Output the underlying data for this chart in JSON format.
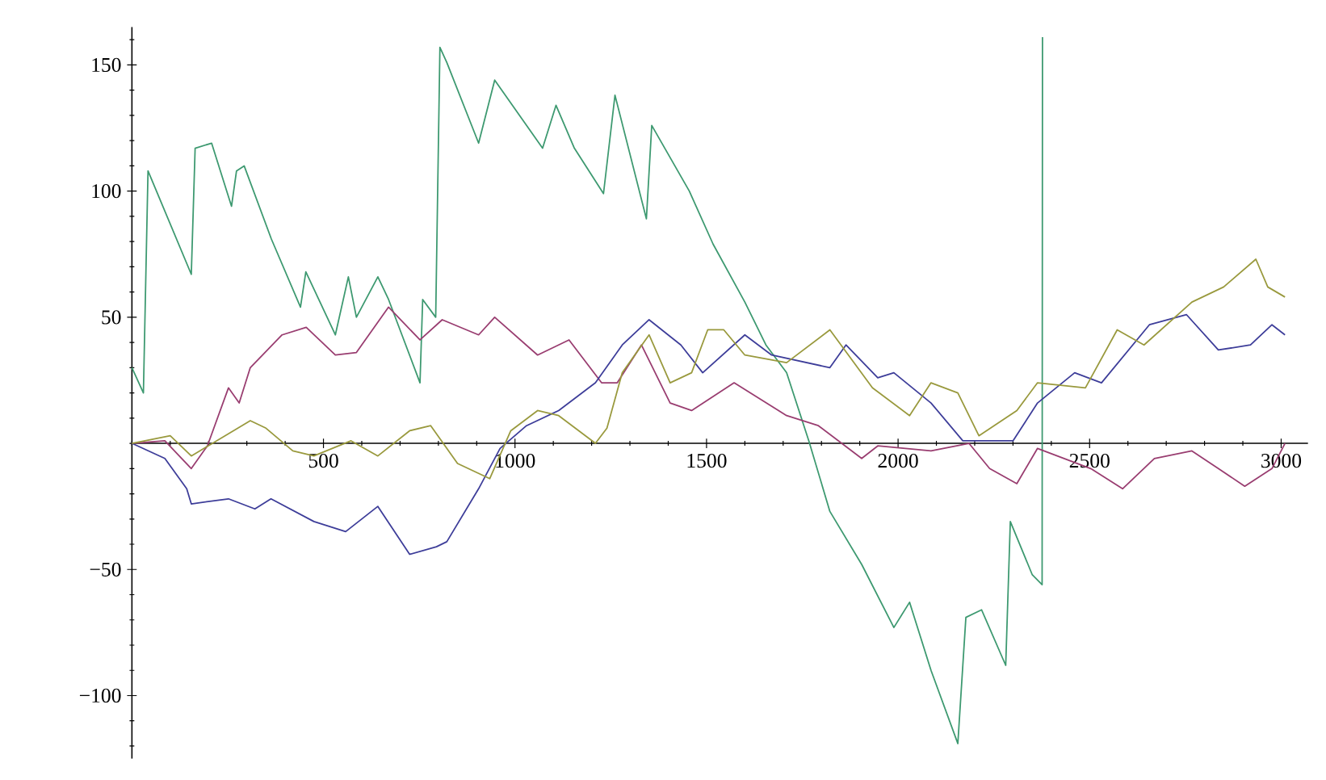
{
  "chart_data": {
    "type": "line",
    "xlim": [
      0,
      3070
    ],
    "ylim": [
      -125,
      165
    ],
    "xticks": [
      500,
      1000,
      1500,
      2000,
      2500,
      3000
    ],
    "yticks": [
      {
        "value": -100,
        "label": "−100"
      },
      {
        "value": -50,
        "label": "−50"
      },
      50,
      100,
      150
    ],
    "series": [
      {
        "color": "#3d9970",
        "x": [
          0,
          30,
          42,
          155,
          165,
          208,
          260,
          273,
          293,
          364,
          440,
          454,
          531,
          565,
          586,
          642,
          670,
          752,
          759,
          793,
          804,
          822,
          905,
          947,
          1072,
          1107,
          1155,
          1231,
          1261,
          1343,
          1357,
          1455,
          1517,
          1600,
          1655,
          1709,
          1767,
          1822,
          1905,
          1989,
          2030,
          2086,
          2156,
          2177,
          2218,
          2281,
          2293,
          2350,
          2376,
          2377
        ],
        "values": [
          30,
          20,
          108,
          67,
          117,
          119,
          94,
          108,
          110,
          81,
          54,
          68,
          43,
          66,
          50,
          66,
          57,
          24,
          57,
          50,
          157,
          151,
          119,
          144,
          117,
          134,
          117,
          99,
          138,
          89,
          126,
          100,
          79,
          56,
          39,
          28,
          1,
          -27,
          -48,
          -73,
          -63,
          -90,
          -119,
          -69,
          -66,
          -88,
          -31,
          -52,
          -56,
          161
        ]
      },
      {
        "color": "#993d70",
        "x": [
          0,
          86,
          155,
          197,
          252,
          280,
          309,
          392,
          455,
          531,
          586,
          670,
          752,
          810,
          905,
          947,
          1059,
          1141,
          1226,
          1267,
          1330,
          1405,
          1461,
          1572,
          1709,
          1792,
          1905,
          1947,
          2086,
          2185,
          2239,
          2310,
          2364,
          2503,
          2586,
          2669,
          2767,
          2836,
          2905,
          2976,
          3010
        ],
        "values": [
          0,
          1,
          -10,
          -1,
          22,
          16,
          30,
          43,
          46,
          35,
          36,
          54,
          41,
          49,
          43,
          50,
          35,
          41,
          24,
          24,
          39,
          16,
          13,
          24,
          11,
          7,
          -6,
          -1,
          -3,
          0,
          -10,
          -16,
          -2,
          -10,
          -18,
          -6,
          -3,
          -10,
          -17,
          -10,
          0
        ]
      },
      {
        "color": "#3d3d99",
        "x": [
          0,
          86,
          143,
          155,
          252,
          321,
          363,
          475,
          558,
          642,
          725,
          795,
          822,
          905,
          961,
          1030,
          1114,
          1210,
          1280,
          1350,
          1433,
          1490,
          1600,
          1670,
          1822,
          1864,
          1947,
          1989,
          2086,
          2169,
          2225,
          2300,
          2364,
          2461,
          2531,
          2656,
          2753,
          2836,
          2920,
          2976,
          3010
        ],
        "values": [
          0,
          -6,
          -18,
          -24,
          -22,
          -26,
          -22,
          -31,
          -35,
          -25,
          -44,
          -41,
          -39,
          -18,
          -2,
          7,
          13,
          24,
          39,
          49,
          39,
          28,
          43,
          35,
          30,
          39,
          26,
          28,
          16,
          1,
          1,
          1,
          16,
          28,
          24,
          47,
          51,
          37,
          39,
          47,
          43
        ]
      },
      {
        "color": "#99993d",
        "x": [
          0,
          100,
          155,
          309,
          350,
          420,
          475,
          572,
          642,
          725,
          780,
          850,
          934,
          989,
          1059,
          1114,
          1210,
          1240,
          1280,
          1350,
          1405,
          1461,
          1503,
          1545,
          1600,
          1709,
          1822,
          1933,
          2030,
          2086,
          2156,
          2211,
          2310,
          2364,
          2489,
          2572,
          2642,
          2767,
          2850,
          2934,
          2965,
          3010
        ],
        "values": [
          0,
          3,
          -5,
          9,
          6,
          -3,
          -5,
          1,
          -5,
          5,
          7,
          -8,
          -14,
          5,
          13,
          11,
          0,
          6,
          28,
          43,
          24,
          28,
          45,
          45,
          35,
          32,
          45,
          22,
          11,
          24,
          20,
          3,
          13,
          24,
          22,
          45,
          39,
          56,
          62,
          73,
          62,
          58
        ]
      }
    ]
  }
}
